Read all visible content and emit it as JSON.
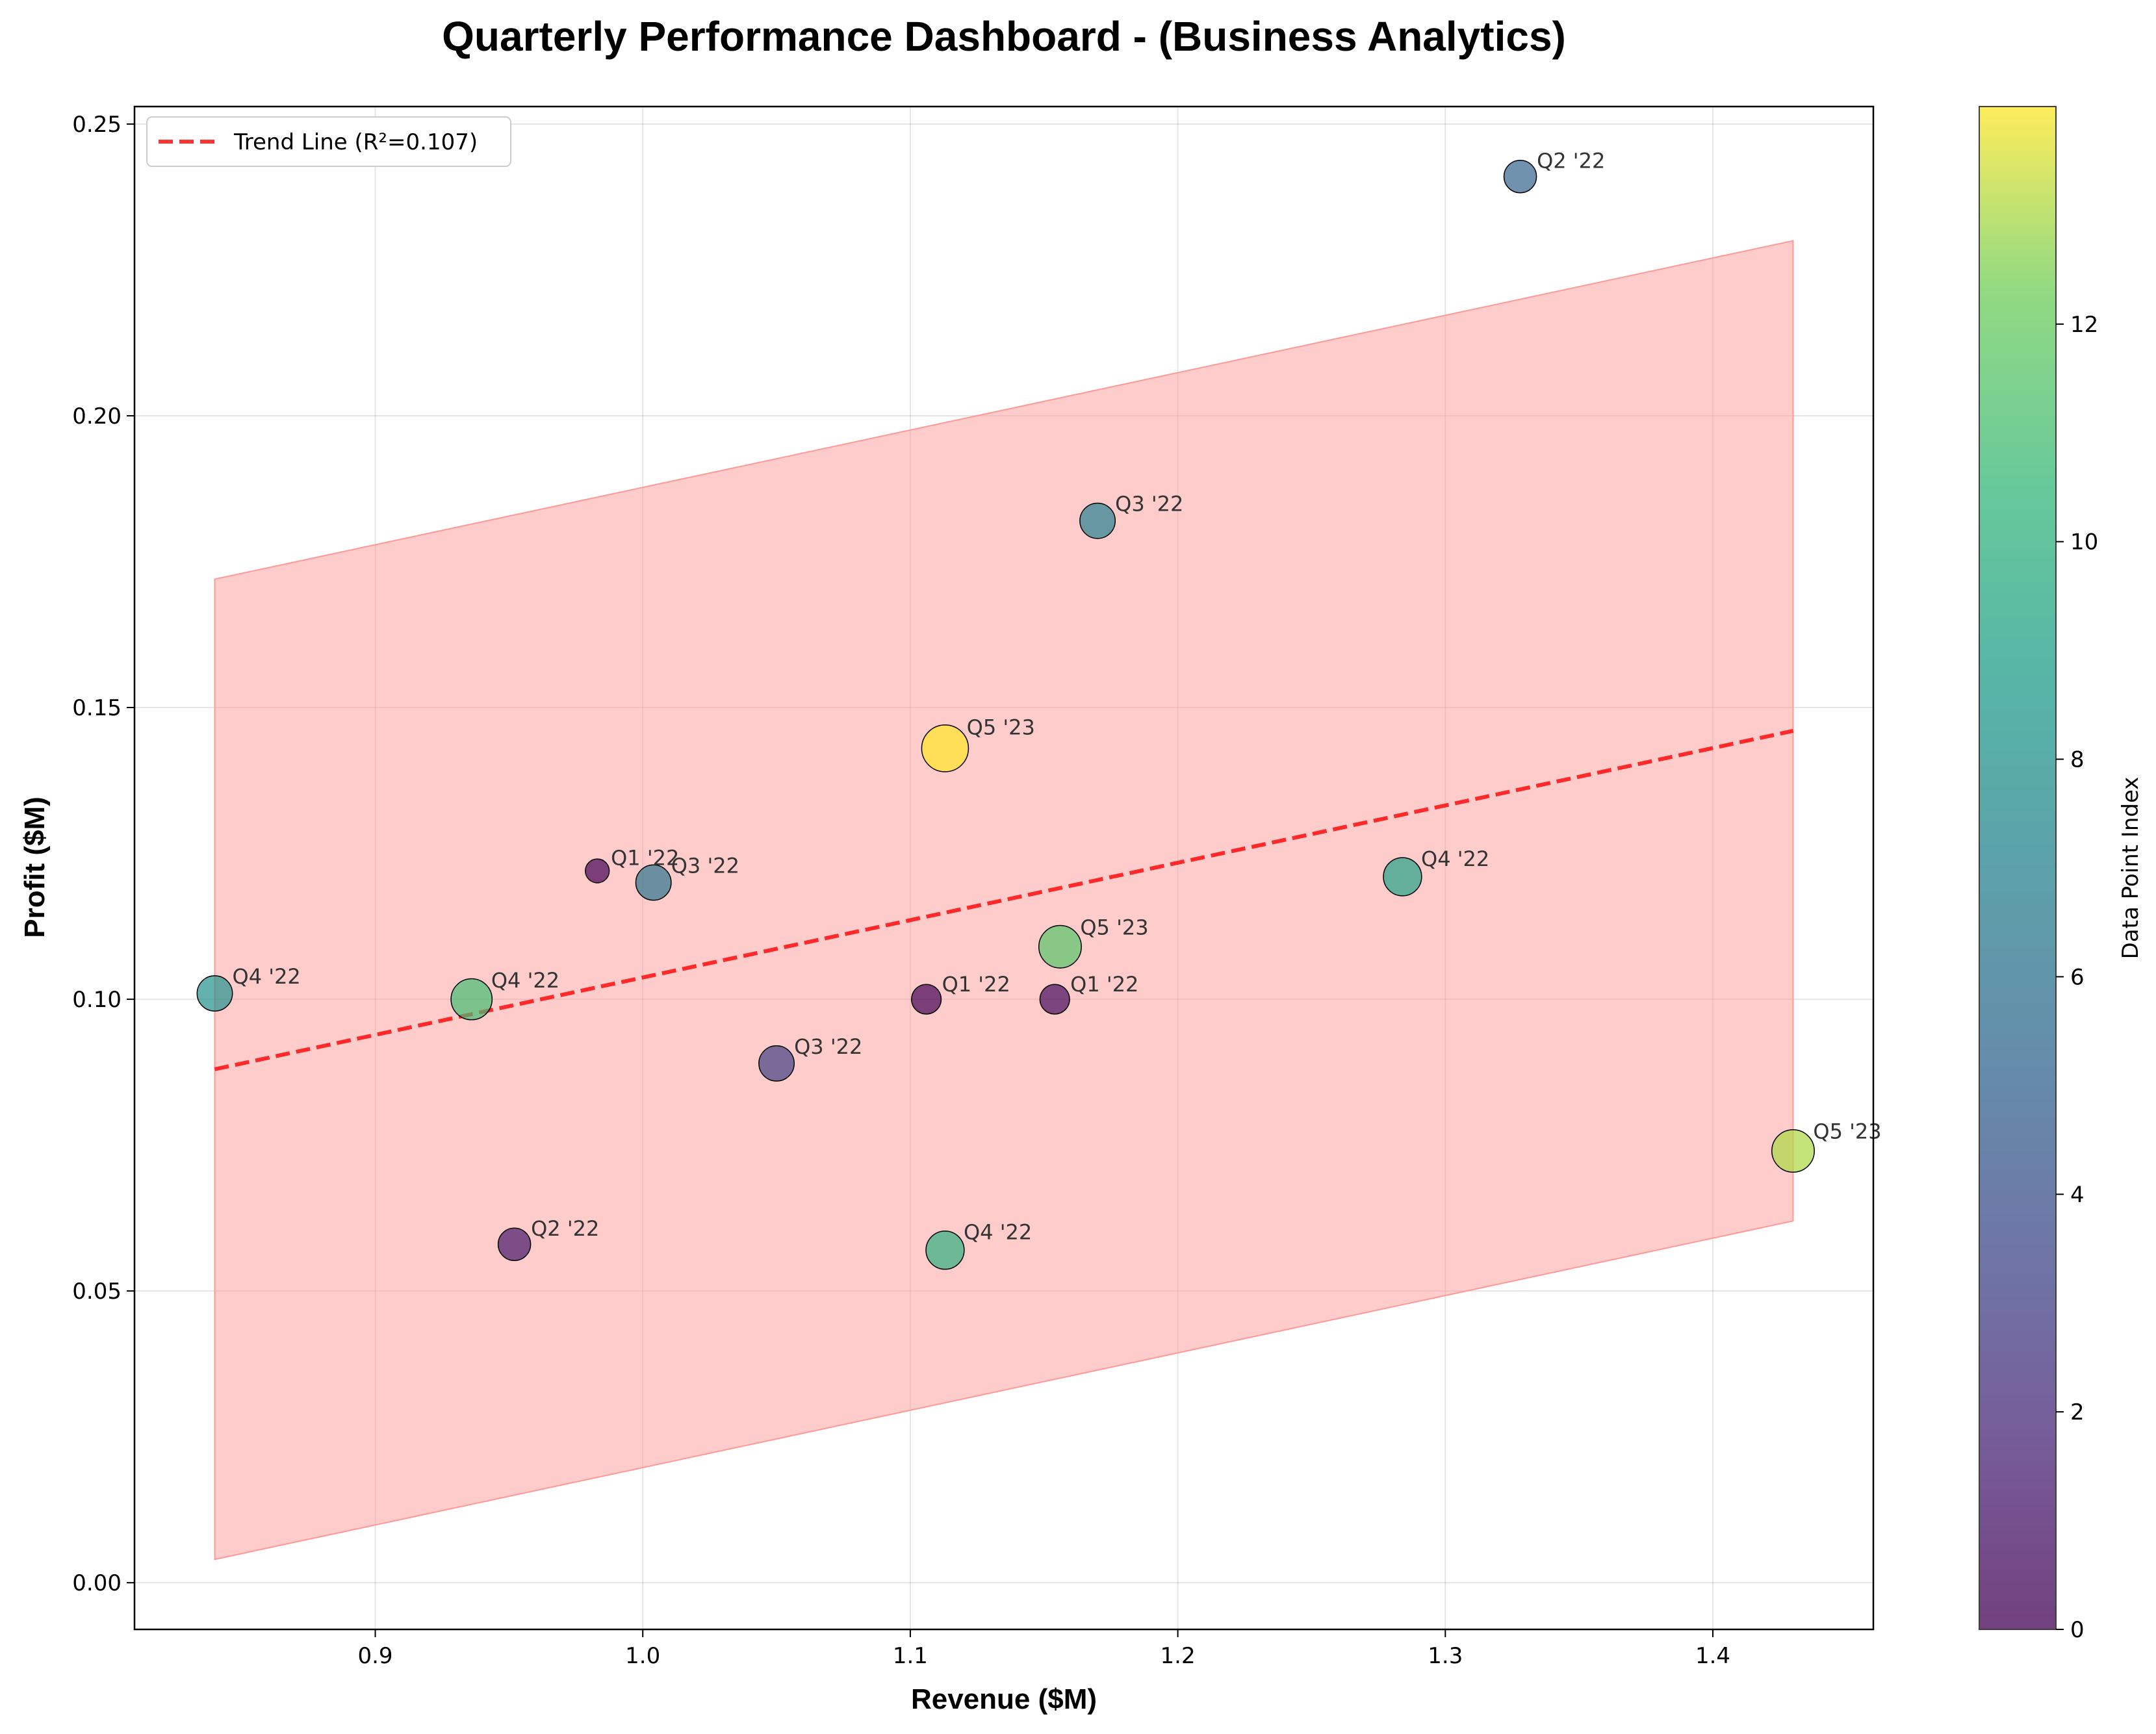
{
  "chart_data": {
    "type": "scatter",
    "title": "Quarterly Performance Dashboard - (Business Analytics)",
    "xlabel": "Revenue ($M)",
    "ylabel": "Profit ($M)",
    "xlim": [
      0.81,
      1.46
    ],
    "ylim": [
      -0.008,
      0.253
    ],
    "x_ticks": [
      0.9,
      1.0,
      1.1,
      1.2,
      1.3,
      1.4
    ],
    "x_tick_labels": [
      "0.9",
      "1.0",
      "1.1",
      "1.2",
      "1.3",
      "1.4"
    ],
    "y_ticks": [
      0.0,
      0.05,
      0.1,
      0.15,
      0.2,
      0.25
    ],
    "y_tick_labels": [
      "0.00",
      "0.05",
      "0.10",
      "0.15",
      "0.20",
      "0.25"
    ],
    "grid": true,
    "legend": {
      "position": "top-left",
      "entries": [
        "Trend Line (R²=0.107)"
      ]
    },
    "trend_line": {
      "x": [
        0.84,
        1.43
      ],
      "y": [
        0.088,
        0.146
      ],
      "color": "#ff0000"
    },
    "confidence_band": {
      "x": [
        0.84,
        1.43
      ],
      "upper": [
        0.172,
        0.23
      ],
      "lower": [
        0.004,
        0.062
      ],
      "color": "#ff9999"
    },
    "colorbar": {
      "label": "Data Point Index",
      "min": 0,
      "max": 14,
      "ticks": [
        0,
        2,
        4,
        6,
        8,
        10,
        12
      ],
      "tick_labels": [
        "0",
        "2",
        "4",
        "6",
        "8",
        "10",
        "12"
      ],
      "colormap": "viridis"
    },
    "points": [
      {
        "x": 0.983,
        "y": 0.122,
        "index": 0,
        "size": 0.2,
        "label": "Q1 '22"
      },
      {
        "x": 1.106,
        "y": 0.1,
        "index": 0,
        "size": 0.4,
        "label": "Q1 '22"
      },
      {
        "x": 1.154,
        "y": 0.1,
        "index": 0.5,
        "size": 0.4,
        "label": "Q1 '22"
      },
      {
        "x": 0.952,
        "y": 0.058,
        "index": 1,
        "size": 0.5,
        "label": "Q2 '22"
      },
      {
        "x": 1.05,
        "y": 0.089,
        "index": 3,
        "size": 0.6,
        "label": "Q3 '22"
      },
      {
        "x": 1.328,
        "y": 0.241,
        "index": 5,
        "size": 0.5,
        "label": "Q2 '22"
      },
      {
        "x": 1.004,
        "y": 0.12,
        "index": 6,
        "size": 0.6,
        "label": "Q3 '22"
      },
      {
        "x": 1.17,
        "y": 0.182,
        "index": 7,
        "size": 0.6,
        "label": "Q3 '22"
      },
      {
        "x": 0.84,
        "y": 0.101,
        "index": 8,
        "size": 0.6,
        "label": "Q4 '22"
      },
      {
        "x": 1.284,
        "y": 0.121,
        "index": 9,
        "size": 0.7,
        "label": "Q4 '22"
      },
      {
        "x": 1.113,
        "y": 0.057,
        "index": 10,
        "size": 0.7,
        "label": "Q4 '22"
      },
      {
        "x": 0.936,
        "y": 0.1,
        "index": 11,
        "size": 0.8,
        "label": "Q4 '22"
      },
      {
        "x": 1.156,
        "y": 0.109,
        "index": 11.5,
        "size": 0.85,
        "label": "Q5 '23"
      },
      {
        "x": 1.43,
        "y": 0.074,
        "index": 13,
        "size": 0.85,
        "label": "Q5 '23"
      },
      {
        "x": 1.113,
        "y": 0.143,
        "index": 14,
        "size": 1.0,
        "label": "Q5 '23"
      }
    ]
  }
}
